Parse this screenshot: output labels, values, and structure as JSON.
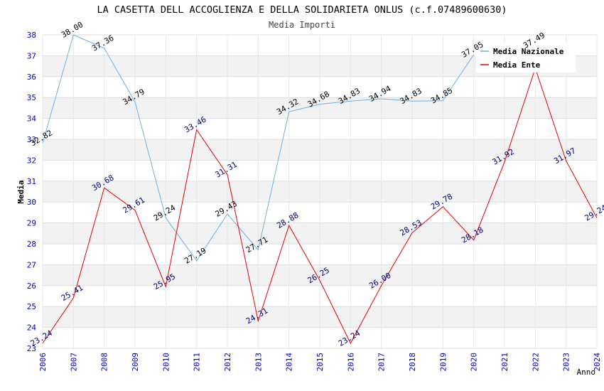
{
  "chart_data": {
    "type": "line",
    "title": "LA CASETTA DELL ACCOGLIENZA E DELLA SOLIDARIETA ONLUS (c.f.07489600630)",
    "subtitle": "Media Importi",
    "xlabel": "Anno",
    "ylabel": "Media",
    "ylim": [
      23,
      38
    ],
    "yticks": [
      "23",
      "24",
      "25",
      "26",
      "27",
      "28",
      "29",
      "30",
      "31",
      "32",
      "33",
      "34",
      "35",
      "36",
      "37",
      "38"
    ],
    "categories": [
      "2006",
      "2007",
      "2008",
      "2009",
      "2010",
      "2011",
      "2012",
      "2013",
      "2014",
      "2015",
      "2016",
      "2017",
      "2018",
      "2019",
      "2020",
      "2021",
      "2022",
      "2023",
      "2024"
    ],
    "legend_position": "top-right",
    "grid": true,
    "series": [
      {
        "name": "Media Nazionale",
        "color": "#6aaee8",
        "label_color": "#000000",
        "values": [
          32.82,
          38.0,
          37.36,
          34.79,
          29.24,
          27.19,
          29.43,
          27.71,
          34.32,
          34.68,
          34.83,
          34.94,
          34.83,
          34.85,
          37.05,
          null,
          37.49,
          null,
          null
        ],
        "labels": [
          "32.82",
          "38.00",
          "37.36",
          "34.79",
          "29.24",
          "27.19",
          "29.43",
          "27.71",
          "34.32",
          "34.68",
          "34.83",
          "34.94",
          "34.83",
          "34.85",
          "37.05",
          null,
          "37.49",
          null,
          null
        ]
      },
      {
        "name": "Media Ente",
        "color": "#e60000",
        "label_color": "#000080",
        "values": [
          23.24,
          25.41,
          30.68,
          29.61,
          25.95,
          33.46,
          31.31,
          24.31,
          28.88,
          26.25,
          23.24,
          26.0,
          28.53,
          29.78,
          28.18,
          31.92,
          36.4,
          31.97,
          29.24
        ],
        "labels": [
          "23.24",
          "25.41",
          "30.68",
          "29.61",
          "25.95",
          "33.46",
          "31.31",
          "24.31",
          "28.88",
          "26.25",
          "23.24",
          "26.00",
          "28.53",
          "29.78",
          "28.18",
          "31.92",
          null,
          "31.97",
          "29.24"
        ]
      }
    ]
  }
}
